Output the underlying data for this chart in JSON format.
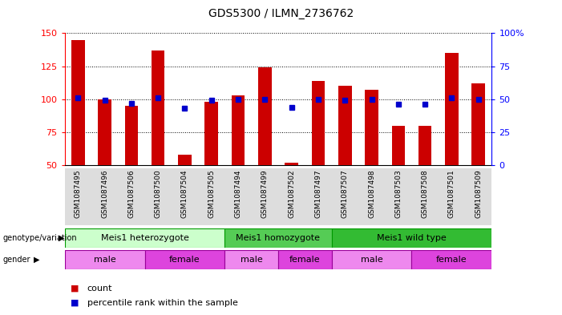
{
  "title": "GDS5300 / ILMN_2736762",
  "samples": [
    "GSM1087495",
    "GSM1087496",
    "GSM1087506",
    "GSM1087500",
    "GSM1087504",
    "GSM1087505",
    "GSM1087494",
    "GSM1087499",
    "GSM1087502",
    "GSM1087497",
    "GSM1087507",
    "GSM1087498",
    "GSM1087503",
    "GSM1087508",
    "GSM1087501",
    "GSM1087509"
  ],
  "counts": [
    145,
    100,
    95,
    137,
    58,
    98,
    103,
    124,
    52,
    114,
    110,
    107,
    80,
    80,
    135,
    112
  ],
  "percentile": [
    51,
    49,
    47,
    51,
    43,
    49,
    50,
    50,
    44,
    50,
    49,
    50,
    46,
    46,
    51,
    50
  ],
  "ylim_left": [
    50,
    150
  ],
  "ylim_right": [
    0,
    100
  ],
  "yticks_left": [
    50,
    75,
    100,
    125,
    150
  ],
  "yticks_right": [
    0,
    25,
    50,
    75,
    100
  ],
  "yticklabels_right": [
    "0",
    "25",
    "50",
    "75",
    "100%"
  ],
  "bar_color": "#cc0000",
  "dot_color": "#0000cc",
  "bg_color": "#ffffff",
  "genotype_groups": [
    {
      "label": "Meis1 heterozygote",
      "start": 0,
      "end": 6,
      "color": "#ccffcc"
    },
    {
      "label": "Meis1 homozygote",
      "start": 6,
      "end": 10,
      "color": "#55cc55"
    },
    {
      "label": "Meis1 wild type",
      "start": 10,
      "end": 16,
      "color": "#33bb33"
    }
  ],
  "gender_groups": [
    {
      "label": "male",
      "start": 0,
      "end": 3,
      "color": "#ee88ee"
    },
    {
      "label": "female",
      "start": 3,
      "end": 6,
      "color": "#dd44dd"
    },
    {
      "label": "male",
      "start": 6,
      "end": 8,
      "color": "#ee88ee"
    },
    {
      "label": "female",
      "start": 8,
      "end": 10,
      "color": "#dd44dd"
    },
    {
      "label": "male",
      "start": 10,
      "end": 13,
      "color": "#ee88ee"
    },
    {
      "label": "female",
      "start": 13,
      "end": 16,
      "color": "#dd44dd"
    }
  ],
  "legend_count_color": "#cc0000",
  "legend_dot_color": "#0000cc"
}
